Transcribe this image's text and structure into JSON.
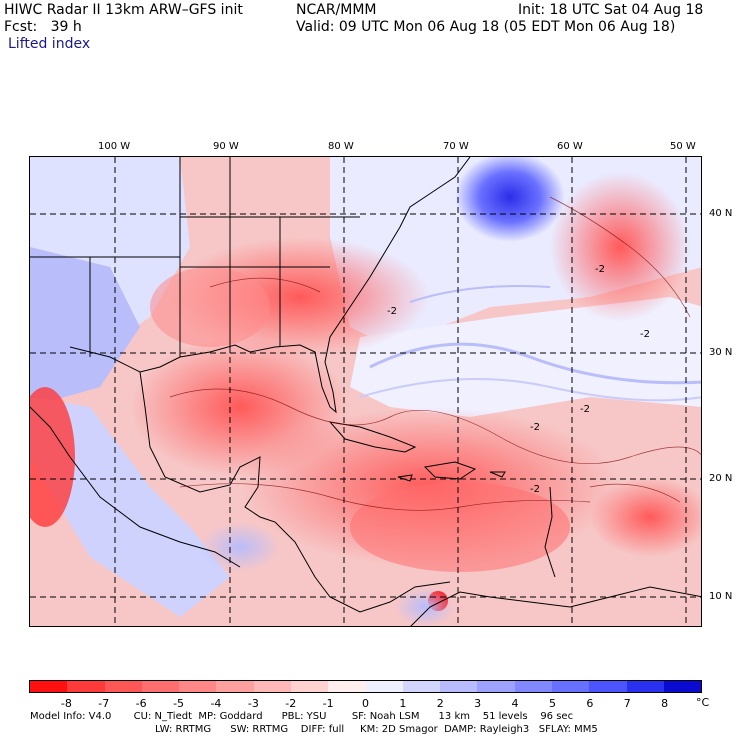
{
  "header": {
    "model": "HIWC Radar II 13km ARW–GFS init",
    "org": "NCAR/MMM",
    "init": "Init: 18 UTC Sat 04 Aug 18",
    "fcst": "Fcst:   39 h",
    "valid": "Valid: 09 UTC Mon 06 Aug 18 (05 EDT Mon 06 Aug 18)",
    "field": "Lifted index"
  },
  "map": {
    "lon_labels": [
      "100 W",
      "90 W",
      "80 W",
      "70 W",
      "60 W",
      "50 W"
    ],
    "lat_labels": [
      "40 N",
      "30 N",
      "20 N",
      "10 N"
    ],
    "contour_labels": [
      "-2",
      "-2",
      "-2",
      "-2",
      "-2",
      "-2"
    ]
  },
  "colorbar": {
    "ticks": [
      "-8",
      "-7",
      "-6",
      "-5",
      "-4",
      "-3",
      "-2",
      "-1",
      "0",
      "1",
      "2",
      "3",
      "4",
      "5",
      "6",
      "7",
      "8"
    ],
    "unit": "°C",
    "colors": [
      "#ff1010",
      "#ff3a3a",
      "#ff5656",
      "#ff6f6f",
      "#ff8787",
      "#ffa0a0",
      "#ffb8b8",
      "#ffd2d2",
      "#ffeeee",
      "#eef0ff",
      "#d2d6ff",
      "#b8bcff",
      "#9da2ff",
      "#8288ff",
      "#6870ff",
      "#4c54ff",
      "#2a30f0",
      "#0a0ad0"
    ]
  },
  "footer": {
    "line1": "Model Info: V4.0       CU: N_Tiedt  MP: Goddard      PBL: YSU        SF: Noah LSM      13 km    51 levels    96 sec",
    "line2": "LW: RRTMG      SW: RRTMG    DIFF: full     KM: 2D Smagor  DAMP: Rayleigh3   SFLAY: MM5"
  }
}
